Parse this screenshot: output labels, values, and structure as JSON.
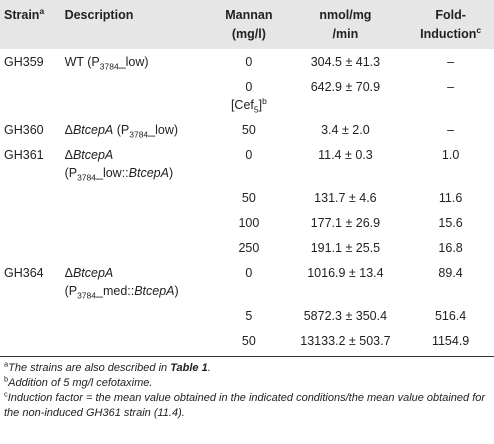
{
  "table": {
    "header": [
      [
        [
          "Strain",
          {
            "text": "a",
            "style": "sup"
          }
        ]
      ],
      [
        [
          "Description"
        ]
      ],
      [
        [
          "Mannan"
        ],
        [
          "(mg/l)"
        ]
      ],
      [
        [
          "nmol/mg"
        ],
        [
          "/min"
        ]
      ],
      [
        [
          "Fold-"
        ],
        [
          "Induction",
          {
            "text": "c",
            "style": "sup"
          }
        ]
      ]
    ],
    "rows": [
      [
        [
          [
            "GH359"
          ]
        ],
        [
          [
            "WT (P",
            {
              "text": "3784",
              "style": "sub"
            },
            "_low)"
          ]
        ],
        [
          [
            "0"
          ]
        ],
        [
          [
            "304.5 ± 41.3"
          ]
        ],
        [
          [
            "–"
          ]
        ]
      ],
      [
        null,
        null,
        [
          [
            "0"
          ],
          [
            "[Cef",
            {
              "text": "5",
              "style": "sub"
            },
            "]",
            {
              "text": "b",
              "style": "sup"
            }
          ]
        ],
        [
          [
            "642.9 ± 70.9"
          ]
        ],
        [
          [
            "–"
          ]
        ]
      ],
      [
        [
          [
            "GH360"
          ]
        ],
        [
          [
            "Δ",
            {
              "text": "BtcepA",
              "style": "i"
            },
            " (P",
            {
              "text": "3784",
              "style": "sub"
            },
            "_low)"
          ]
        ],
        [
          [
            "50"
          ]
        ],
        [
          [
            "3.4 ± 2.0"
          ]
        ],
        [
          [
            "–"
          ]
        ]
      ],
      [
        [
          [
            "GH361"
          ]
        ],
        [
          [
            "Δ",
            {
              "text": "BtcepA",
              "style": "i"
            }
          ],
          [
            "(P",
            {
              "text": "3784",
              "style": "sub"
            },
            "_low::",
            {
              "text": "BtcepA",
              "style": "i"
            },
            ")"
          ]
        ],
        [
          [
            "0"
          ]
        ],
        [
          [
            "11.4 ± 0.3"
          ]
        ],
        [
          [
            "1.0"
          ]
        ]
      ],
      [
        null,
        null,
        [
          [
            "50"
          ]
        ],
        [
          [
            "131.7 ± 4.6"
          ]
        ],
        [
          [
            "11.6"
          ]
        ]
      ],
      [
        null,
        null,
        [
          [
            "100"
          ]
        ],
        [
          [
            "177.1 ± 26.9"
          ]
        ],
        [
          [
            "15.6"
          ]
        ]
      ],
      [
        null,
        null,
        [
          [
            "250"
          ]
        ],
        [
          [
            "191.1 ± 25.5"
          ]
        ],
        [
          [
            "16.8"
          ]
        ]
      ],
      [
        [
          [
            "GH364"
          ]
        ],
        [
          [
            "Δ",
            {
              "text": "BtcepA",
              "style": "i"
            }
          ],
          [
            "(P",
            {
              "text": "3784",
              "style": "sub"
            },
            "_med::",
            {
              "text": "BtcepA",
              "style": "i"
            },
            ")"
          ]
        ],
        [
          [
            "0"
          ]
        ],
        [
          [
            "1016.9 ± 13.4"
          ]
        ],
        [
          [
            "89.4"
          ]
        ]
      ],
      [
        null,
        null,
        [
          [
            "5"
          ]
        ],
        [
          [
            "5872.3 ± 350.4"
          ]
        ],
        [
          [
            "516.4"
          ]
        ]
      ],
      [
        null,
        null,
        [
          [
            "50"
          ]
        ],
        [
          [
            "13133.2 ± 503.7"
          ]
        ],
        [
          [
            "1154.9"
          ]
        ]
      ]
    ]
  },
  "footnotes": [
    [
      {
        "text": "a",
        "style": "sup"
      },
      {
        "text": "The strains are also described in ",
        "style": "i"
      },
      {
        "text": "Table 1",
        "style": "bi"
      },
      {
        "text": ".",
        "style": "i"
      }
    ],
    [
      {
        "text": "b",
        "style": "sup"
      },
      {
        "text": "Addition of 5 mg/l cefotaxime.",
        "style": "i"
      }
    ],
    [
      {
        "text": "c",
        "style": "sup"
      },
      {
        "text": "Induction factor = the mean value obtained in the indicated conditions/the mean value obtained for the non-induced GH361 strain (11.4).",
        "style": "i"
      }
    ]
  ]
}
